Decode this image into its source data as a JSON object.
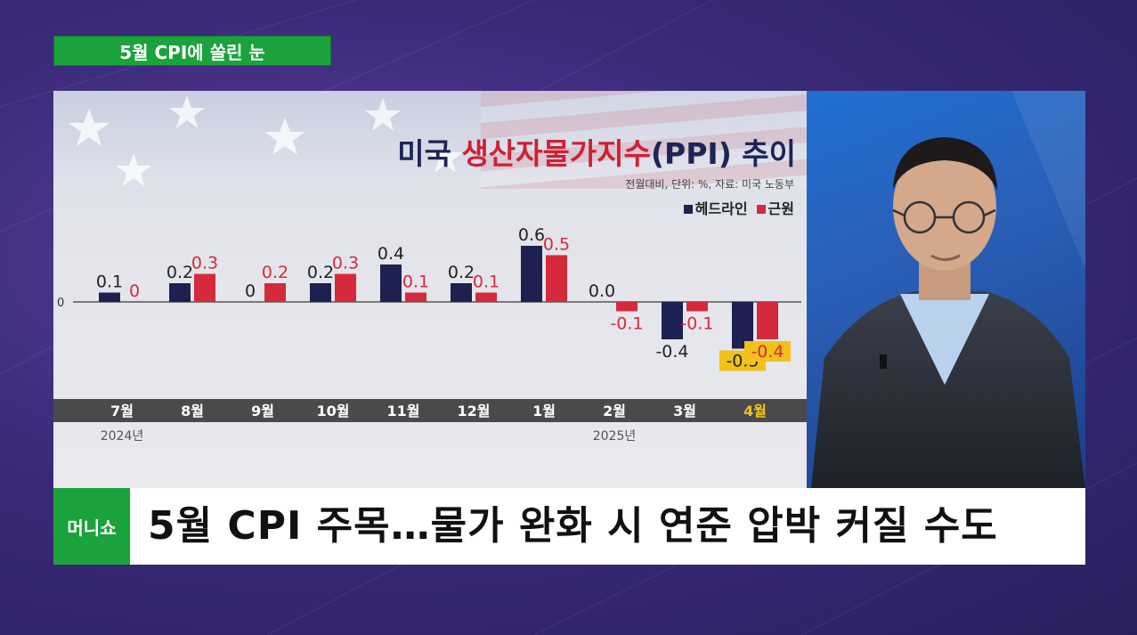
{
  "top_tag": "5월 CPI에 쏠린 눈",
  "chart_title": {
    "plain": "미국 ",
    "highlight": "생산자물가지수",
    "rest": "(PPI) 추이"
  },
  "chart_subtitle": "전월대비, 단위: %, 자료: 미국 노동부",
  "legend": {
    "headline": "헤드라인",
    "core": "근원"
  },
  "colors": {
    "headline": "#1d2050",
    "core": "#d42a3c",
    "highlight_month": "#f2c21b",
    "brand_green": "#1aa33c"
  },
  "chart_data": {
    "type": "bar",
    "title": "미국 생산자물가지수(PPI) 추이",
    "categories": [
      "7월",
      "8월",
      "9월",
      "10월",
      "11월",
      "12월",
      "1월",
      "2월",
      "3월",
      "4월"
    ],
    "year_labels": [
      {
        "index": 0,
        "label": "2024년"
      },
      {
        "index": 7,
        "label": "2025년"
      }
    ],
    "series": [
      {
        "name": "헤드라인",
        "values": [
          0.1,
          0.2,
          0,
          0.2,
          0.4,
          0.2,
          0.6,
          0.0,
          -0.4,
          -0.5
        ],
        "labels": [
          "0.1",
          "0.2",
          "0",
          "0.2",
          "0.4",
          "0.2",
          "0.6",
          "0.0",
          "-0.4",
          "-0.5"
        ]
      },
      {
        "name": "근원",
        "values": [
          0,
          0.3,
          0.2,
          0.3,
          0.1,
          0.1,
          0.5,
          -0.1,
          -0.1,
          -0.4
        ],
        "labels": [
          "0",
          "0.3",
          "0.2",
          "0.3",
          "0.1",
          "0.1",
          "0.5",
          "-0.1",
          "-0.1",
          "-0.4"
        ]
      }
    ],
    "zero_label": "0",
    "highlight_category": "4월",
    "ylim": [
      -0.6,
      0.7
    ]
  },
  "ticker": {
    "logo": "머니쇼",
    "headline": "5월 CPI 주목…물가 완화 시 연준 압박 커질 수도"
  }
}
